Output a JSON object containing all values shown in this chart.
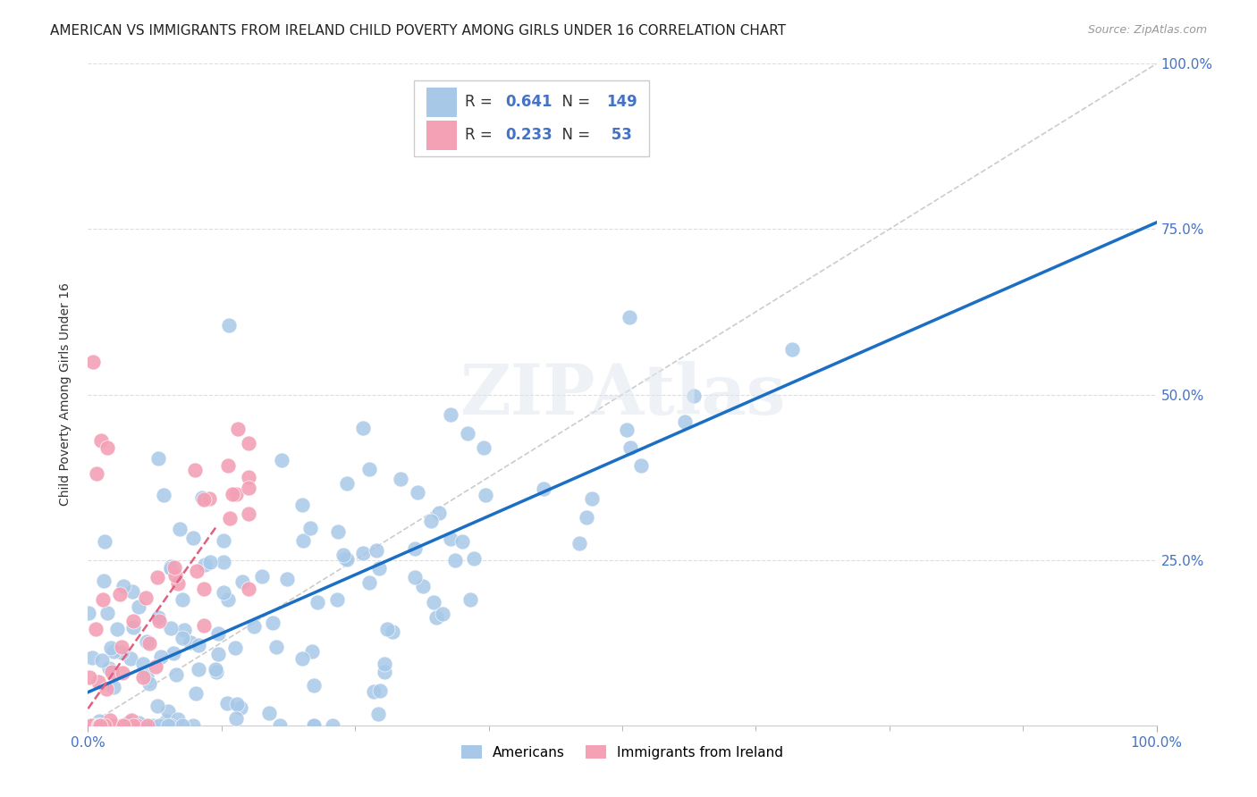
{
  "title": "AMERICAN VS IMMIGRANTS FROM IRELAND CHILD POVERTY AMONG GIRLS UNDER 16 CORRELATION CHART",
  "source": "Source: ZipAtlas.com",
  "ylabel": "Child Poverty Among Girls Under 16",
  "xlim": [
    0,
    1
  ],
  "ylim": [
    0,
    1
  ],
  "ytick_positions": [
    0.0,
    0.25,
    0.5,
    0.75,
    1.0
  ],
  "ytick_labels_right": [
    "",
    "25.0%",
    "50.0%",
    "75.0%",
    "100.0%"
  ],
  "xtick_left_label": "0.0%",
  "xtick_right_label": "100.0%",
  "americans_R": 0.641,
  "americans_N": 149,
  "ireland_R": 0.233,
  "ireland_N": 53,
  "american_color": "#a8c8e8",
  "ireland_color": "#f4a0b5",
  "trendline_american_color": "#1a6fc4",
  "trendline_ireland_color": "#e06080",
  "trendline_am_x0": 0.0,
  "trendline_am_y0": 0.05,
  "trendline_am_x1": 1.0,
  "trendline_am_y1": 0.76,
  "trendline_ir_x0": 0.0,
  "trendline_ir_y0": 0.025,
  "trendline_ir_x1": 0.12,
  "trendline_ir_y1": 0.3,
  "diag_color": "#cccccc",
  "background_color": "#ffffff",
  "grid_color": "#dddddd",
  "title_fontsize": 11,
  "axis_label_fontsize": 10,
  "tick_label_fontsize": 11,
  "watermark_text": "ZIPAtlas",
  "legend_R1": "0.641",
  "legend_N1": "149",
  "legend_R2": "0.233",
  "legend_N2": " 53"
}
